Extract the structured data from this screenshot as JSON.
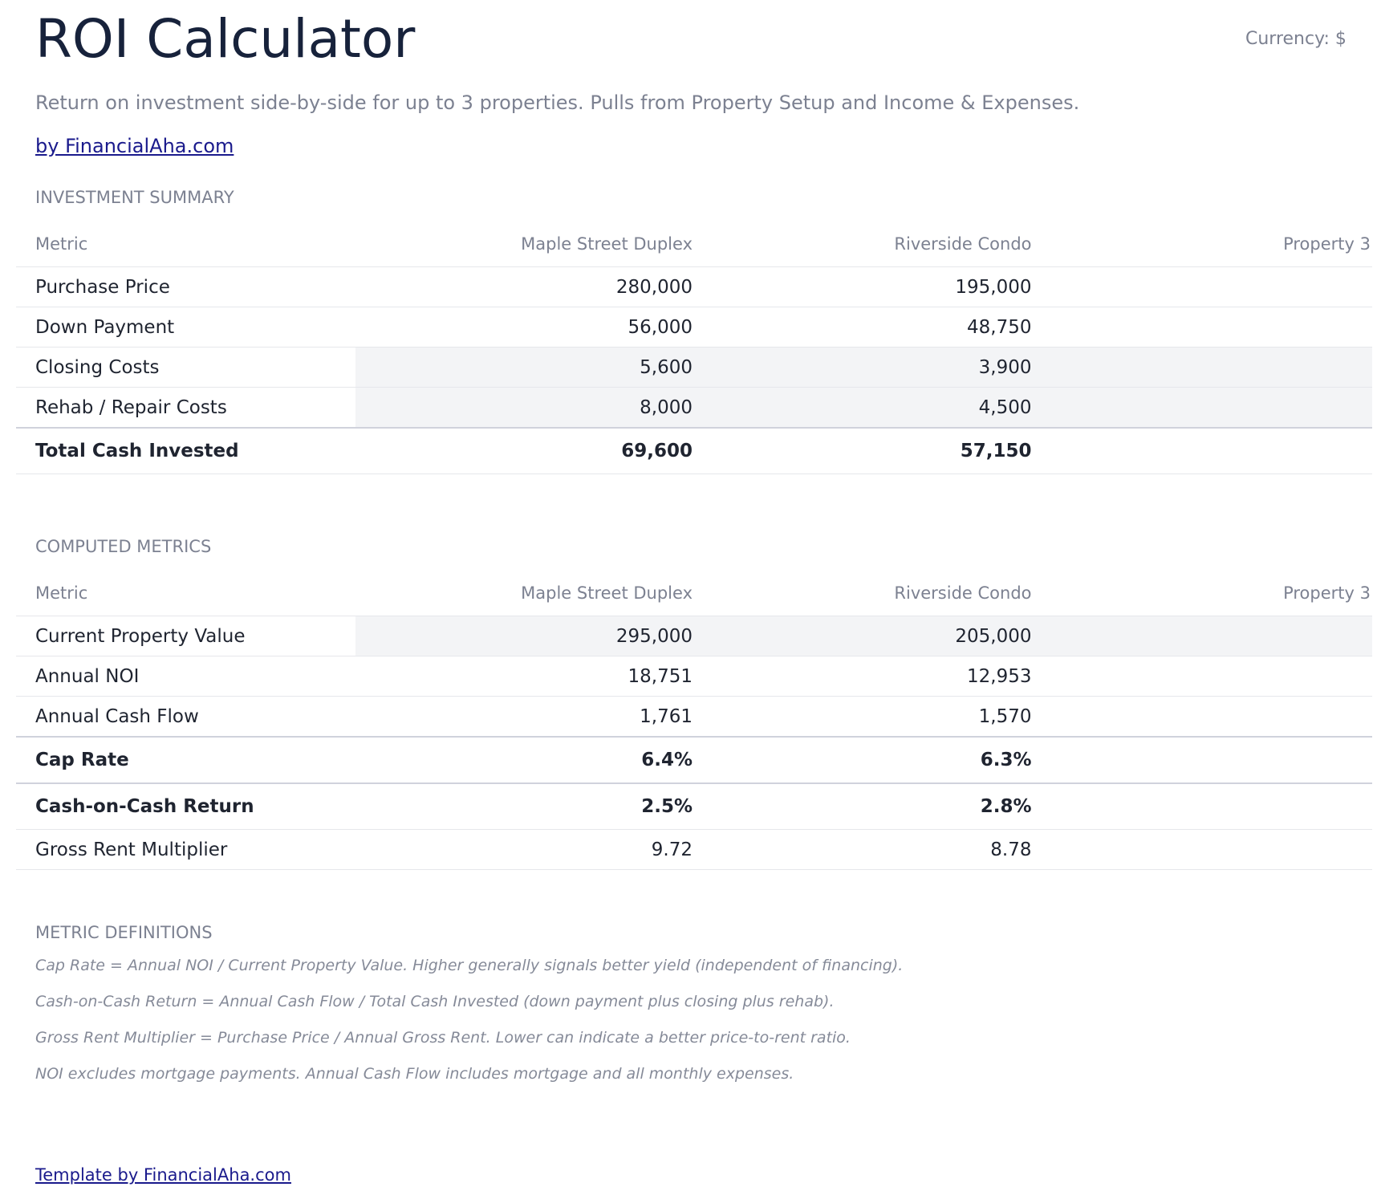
{
  "header": {
    "title": "ROI Calculator",
    "currency": "Currency: $",
    "subtitle": "Return on investment side-by-side for up to 3 properties. Pulls from Property Setup and Income & Expenses.",
    "link": "by FinancialAha.com"
  },
  "sections": [
    {
      "heading": "INVESTMENT SUMMARY",
      "columns": [
        "Metric",
        "Maple Street Duplex",
        "Riverside Condo",
        "Property 3"
      ],
      "rows": [
        {
          "label": "Purchase Price",
          "values": [
            "280,000",
            "195,000"
          ]
        },
        {
          "label": "Down Payment",
          "values": [
            "56,000",
            "48,750"
          ]
        },
        {
          "label": "Closing Costs",
          "values": [
            "5,600",
            "3,900"
          ],
          "shaded": true
        },
        {
          "label": "Rehab / Repair Costs",
          "values": [
            "8,000",
            "4,500"
          ],
          "shaded": true
        },
        {
          "label": "Total Cash Invested",
          "values": [
            "69,600",
            "57,150"
          ],
          "bold": true
        }
      ]
    },
    {
      "heading": "COMPUTED METRICS",
      "columns": [
        "Metric",
        "Maple Street Duplex",
        "Riverside Condo",
        "Property 3"
      ],
      "rows": [
        {
          "label": "Current Property Value",
          "values": [
            "295,000",
            "205,000"
          ],
          "shaded": true
        },
        {
          "label": "Annual NOI",
          "values": [
            "18,751",
            "12,953"
          ]
        },
        {
          "label": "Annual Cash Flow",
          "values": [
            "1,761",
            "1,570"
          ]
        },
        {
          "label": "Cap Rate",
          "values": [
            "6.4%",
            "6.3%"
          ],
          "bold": true
        },
        {
          "label": "Cash-on-Cash Return",
          "values": [
            "2.5%",
            "2.8%"
          ],
          "bold": true
        },
        {
          "label": "Gross Rent Multiplier",
          "values": [
            "9.72",
            "8.78"
          ]
        }
      ]
    }
  ],
  "definitions": {
    "heading": "METRIC DEFINITIONS",
    "items": [
      "Cap Rate = Annual NOI / Current Property Value. Higher generally signals better yield (independent of financing).",
      "Cash-on-Cash Return = Annual Cash Flow / Total Cash Invested (down payment plus closing plus rehab).",
      "Gross Rent Multiplier = Purchase Price / Annual Gross Rent. Lower can indicate a better price-to-rent ratio.",
      "NOI excludes mortgage payments. Annual Cash Flow includes mortgage and all monthly expenses."
    ]
  },
  "footer": {
    "link": "Template by FinancialAha.com"
  }
}
